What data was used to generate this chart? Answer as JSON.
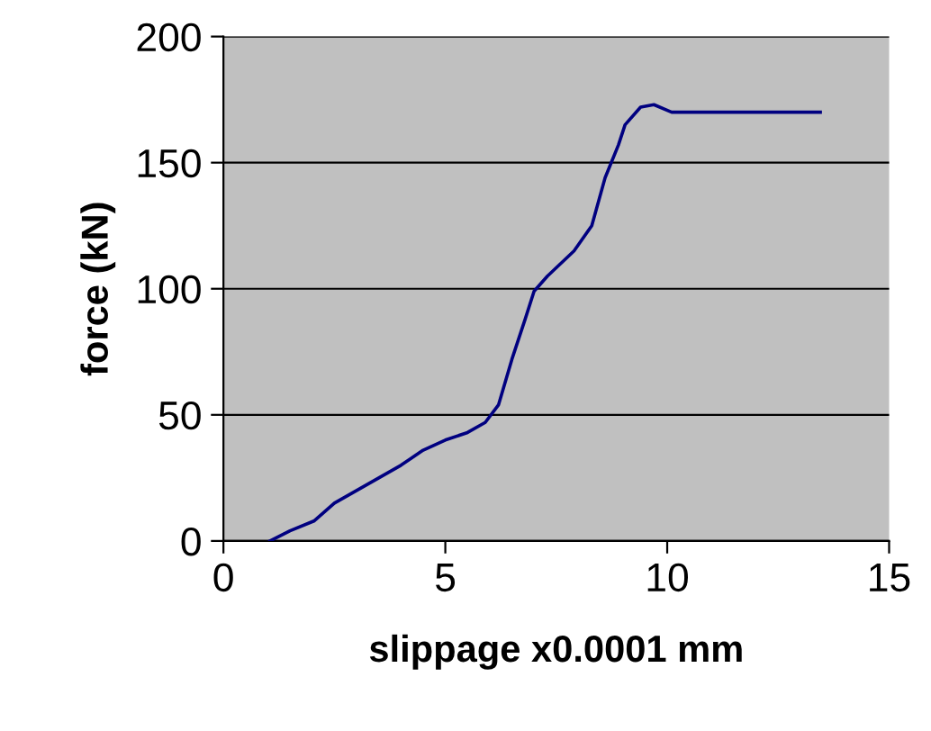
{
  "chart_data": {
    "type": "line",
    "xlabel": "slippage x0.0001 mm",
    "ylabel": "force (kN)",
    "series": [
      {
        "color": "#000080",
        "x": [
          1.05,
          1.5,
          2.05,
          2.5,
          3.0,
          3.5,
          4.0,
          4.5,
          5.0,
          5.5,
          5.9,
          6.2,
          6.5,
          6.8,
          7.0,
          7.3,
          7.9,
          8.3,
          8.6,
          8.9,
          9.05,
          9.4,
          9.7,
          10.1,
          13.45
        ],
        "values": [
          0,
          4,
          8,
          15,
          20,
          25,
          30,
          36,
          40,
          43,
          47,
          54,
          72,
          88,
          99,
          105,
          115,
          125,
          144,
          157,
          165,
          172,
          173,
          170,
          170
        ]
      }
    ],
    "xlim": [
      0,
      15
    ],
    "ylim": [
      0,
      200
    ],
    "xticks": [
      0,
      5,
      10,
      15
    ],
    "yticks": [
      0,
      50,
      100,
      150,
      200
    ],
    "grid": "y",
    "legend": false,
    "marker": "none",
    "line_style": "solid"
  }
}
